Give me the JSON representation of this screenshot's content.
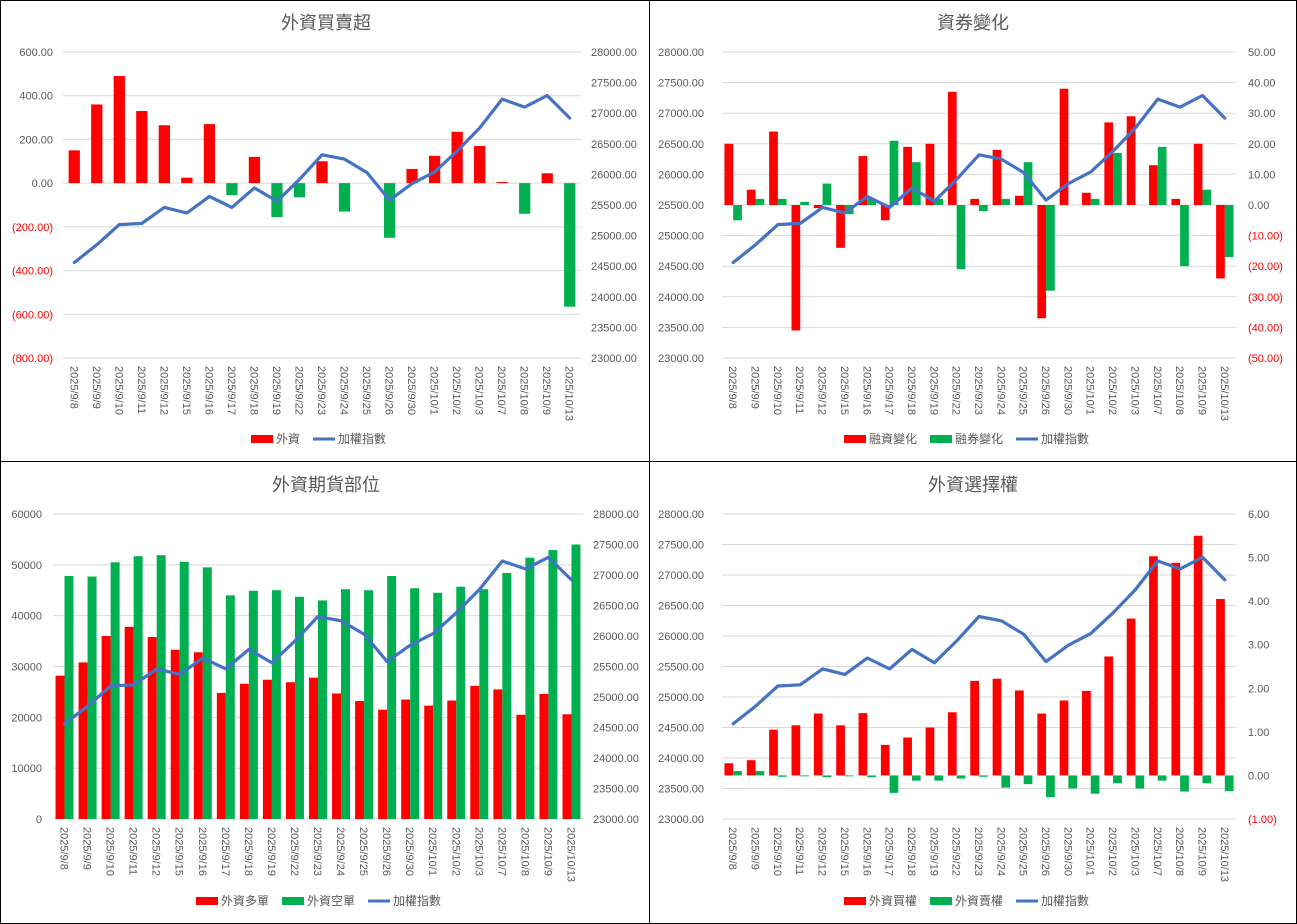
{
  "dates": [
    "2025/9/8",
    "2025/9/9",
    "2025/9/10",
    "2025/9/11",
    "2025/9/12",
    "2025/9/15",
    "2025/9/16",
    "2025/9/17",
    "2025/9/18",
    "2025/9/19",
    "2025/9/22",
    "2025/9/23",
    "2025/9/24",
    "2025/9/25",
    "2025/9/26",
    "2025/9/30",
    "2025/10/1",
    "2025/10/2",
    "2025/10/3",
    "2025/10/7",
    "2025/10/8",
    "2025/10/9",
    "2025/10/13"
  ],
  "index_series": [
    24560,
    24850,
    25180,
    25200,
    25460,
    25370,
    25640,
    25460,
    25780,
    25560,
    25920,
    26320,
    26250,
    26030,
    25580,
    25850,
    26040,
    26380,
    26760,
    27230,
    27100,
    27290,
    26920
  ],
  "colors": {
    "red": "#ff0000",
    "green": "#00b050",
    "blue": "#4472c4",
    "grid": "#d9d9d9",
    "text": "#595959"
  },
  "chart_data": [
    {
      "type": "bar",
      "title": "外資買賣超",
      "series": [
        {
          "name": "外資",
          "kind": "bar",
          "axis": "left",
          "color": "signed",
          "values": [
            150,
            360,
            490,
            330,
            265,
            25,
            270,
            -55,
            120,
            -155,
            -65,
            100,
            -130,
            0,
            -250,
            65,
            125,
            235,
            170,
            5,
            -140,
            45,
            -565
          ]
        },
        {
          "name": "加權指數",
          "kind": "line",
          "axis": "right",
          "values_ref": "index_series"
        }
      ],
      "left_axis": {
        "ticks": [
          "600.00",
          "400.00",
          "200.00",
          "0.00",
          "(200.00)",
          "(400.00)",
          "(600.00)",
          "(800.00)"
        ],
        "range": [
          -800,
          600
        ]
      },
      "right_axis": {
        "ticks": [
          "28000.00",
          "27500.00",
          "27000.00",
          "26500.00",
          "26000.00",
          "25500.00",
          "25000.00",
          "24500.00",
          "24000.00",
          "23500.00",
          "23000.00"
        ],
        "range": [
          23000,
          28000
        ]
      },
      "legend": [
        "外資",
        "加權指數"
      ]
    },
    {
      "type": "bar",
      "title": "資券變化",
      "series": [
        {
          "name": "融資變化",
          "kind": "bar",
          "axis": "right",
          "color": "#ff0000",
          "values": [
            20,
            5,
            24,
            -41,
            -1,
            -14,
            16,
            -5,
            19,
            20,
            37,
            2,
            18,
            3,
            -37,
            38,
            4,
            27,
            29,
            13,
            2,
            20,
            -24
          ]
        },
        {
          "name": "融券變化",
          "kind": "bar",
          "axis": "right",
          "color": "#00b050",
          "values": [
            -5,
            2,
            2,
            1,
            7,
            -3,
            2,
            21,
            14,
            2,
            -21,
            -2,
            2,
            14,
            -28,
            0,
            2,
            17,
            0,
            19,
            -20,
            5,
            -17
          ]
        },
        {
          "name": "加權指數",
          "kind": "line",
          "axis": "left",
          "values_ref": "index_series"
        }
      ],
      "left_axis": {
        "ticks": [
          "28000.00",
          "27500.00",
          "27000.00",
          "26500.00",
          "26000.00",
          "25500.00",
          "25000.00",
          "24500.00",
          "24000.00",
          "23500.00",
          "23000.00"
        ],
        "range": [
          23000,
          28000
        ]
      },
      "right_axis": {
        "ticks": [
          "50.00",
          "40.00",
          "30.00",
          "20.00",
          "10.00",
          "0.00",
          "(10.00)",
          "(20.00)",
          "(30.00)",
          "(40.00)",
          "(50.00)"
        ],
        "range": [
          -50,
          50
        ]
      },
      "legend": [
        "融資變化",
        "融券變化",
        "加權指數"
      ]
    },
    {
      "type": "bar",
      "title": "外資期貨部位",
      "series": [
        {
          "name": "外資多單",
          "kind": "bar",
          "axis": "left",
          "color": "#ff0000",
          "values": [
            28200,
            30800,
            36000,
            37800,
            35800,
            33300,
            32800,
            24800,
            26600,
            27400,
            26900,
            27800,
            24700,
            23200,
            21500,
            23500,
            22300,
            23300,
            26200,
            25500,
            20500,
            24600,
            20600
          ]
        },
        {
          "name": "外資空單",
          "kind": "bar",
          "axis": "left",
          "color": "#00b050",
          "values": [
            47800,
            47700,
            50500,
            51700,
            51900,
            50600,
            49500,
            44000,
            44900,
            45000,
            43700,
            43000,
            45200,
            45000,
            47800,
            45400,
            44500,
            45700,
            45200,
            48400,
            51400,
            52900,
            54000
          ]
        },
        {
          "name": "加權指數",
          "kind": "line",
          "axis": "right",
          "values_ref": "index_series"
        }
      ],
      "left_axis": {
        "ticks": [
          "60000",
          "50000",
          "40000",
          "30000",
          "20000",
          "10000",
          "0"
        ],
        "range": [
          0,
          60000
        ]
      },
      "right_axis": {
        "ticks": [
          "28000.00",
          "27500.00",
          "27000.00",
          "26500.00",
          "26000.00",
          "25500.00",
          "25000.00",
          "24500.00",
          "24000.00",
          "23500.00",
          "23000.00"
        ],
        "range": [
          23000,
          28000
        ]
      },
      "legend": [
        "外資多單",
        "外資空單",
        "加權指數"
      ]
    },
    {
      "type": "bar",
      "title": "外資選擇權",
      "series": [
        {
          "name": "外資買權",
          "kind": "bar",
          "axis": "right",
          "color": "#ff0000",
          "values": [
            0.28,
            0.35,
            1.05,
            1.15,
            1.42,
            1.15,
            1.43,
            0.7,
            0.87,
            1.1,
            1.45,
            2.17,
            2.22,
            1.95,
            1.42,
            1.72,
            1.94,
            2.73,
            3.6,
            5.03,
            4.88,
            5.5,
            4.05
          ]
        },
        {
          "name": "外資賣權",
          "kind": "bar",
          "axis": "right",
          "color": "#00b050",
          "values": [
            0.1,
            0.1,
            -0.03,
            -0.02,
            -0.04,
            -0.02,
            -0.04,
            -0.4,
            -0.12,
            -0.12,
            -0.07,
            -0.03,
            -0.28,
            -0.2,
            -0.5,
            -0.3,
            -0.42,
            -0.18,
            -0.3,
            -0.12,
            -0.37,
            -0.18,
            -0.36
          ]
        },
        {
          "name": "加權指數",
          "kind": "line",
          "axis": "left",
          "values_ref": "index_series"
        }
      ],
      "left_axis": {
        "ticks": [
          "28000.00",
          "27500.00",
          "27000.00",
          "26500.00",
          "26000.00",
          "25500.00",
          "25000.00",
          "24500.00",
          "24000.00",
          "23500.00",
          "23000.00"
        ],
        "range": [
          23000,
          28000
        ]
      },
      "right_axis": {
        "ticks": [
          "6.00",
          "5.00",
          "4.00",
          "3.00",
          "2.00",
          "1.00",
          "0.00",
          "(1.00)"
        ],
        "range": [
          -1,
          6
        ]
      },
      "legend": [
        "外資買權",
        "外資賣權",
        "加權指數"
      ]
    }
  ]
}
